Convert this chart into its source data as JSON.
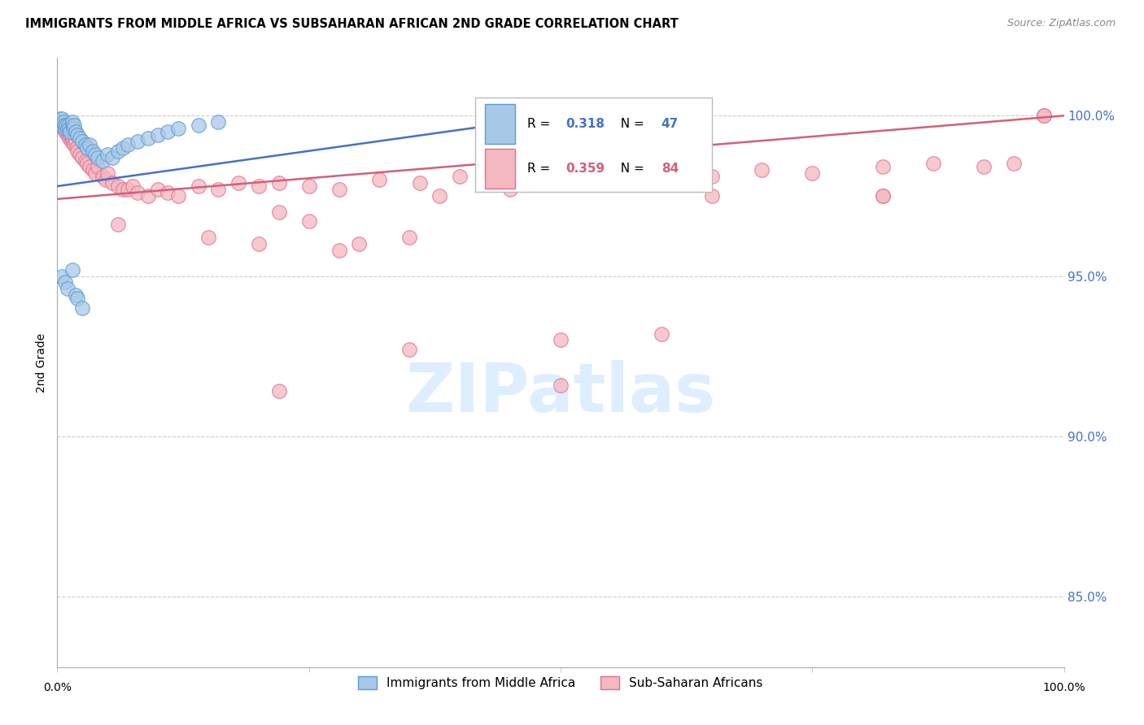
{
  "title": "IMMIGRANTS FROM MIDDLE AFRICA VS SUBSAHARAN AFRICAN 2ND GRADE CORRELATION CHART",
  "source": "Source: ZipAtlas.com",
  "ylabel": "2nd Grade",
  "yticks": [
    0.85,
    0.9,
    0.95,
    1.0
  ],
  "ytick_labels": [
    "85.0%",
    "90.0%",
    "95.0%",
    "100.0%"
  ],
  "xrange": [
    0.0,
    1.0
  ],
  "yrange": [
    0.828,
    1.018
  ],
  "legend1_label": "Immigrants from Middle Africa",
  "legend2_label": "Sub-Saharan Africans",
  "blue_R": "0.318",
  "blue_N": "47",
  "pink_R": "0.359",
  "pink_N": "84",
  "blue_color": "#a8c8e8",
  "pink_color": "#f4b8c0",
  "blue_edge_color": "#5b9bd5",
  "pink_edge_color": "#e07090",
  "blue_line_color": "#4472C4",
  "pink_line_color": "#d45f7a",
  "watermark_color": "#ddeeff",
  "blue_points_x": [
    0.002,
    0.003,
    0.004,
    0.005,
    0.005,
    0.006,
    0.007,
    0.008,
    0.009,
    0.01,
    0.011,
    0.012,
    0.013,
    0.015,
    0.015,
    0.016,
    0.017,
    0.018,
    0.02,
    0.022,
    0.025,
    0.028,
    0.03,
    0.032,
    0.035,
    0.038,
    0.04,
    0.045,
    0.05,
    0.055,
    0.06,
    0.065,
    0.07,
    0.08,
    0.09,
    0.1,
    0.11,
    0.12,
    0.14,
    0.16,
    0.005,
    0.008,
    0.01,
    0.015,
    0.018,
    0.02,
    0.025
  ],
  "blue_points_y": [
    0.998,
    0.999,
    0.998,
    0.999,
    0.997,
    0.998,
    0.997,
    0.996,
    0.997,
    0.996,
    0.997,
    0.996,
    0.995,
    0.997,
    0.998,
    0.996,
    0.997,
    0.995,
    0.994,
    0.993,
    0.992,
    0.991,
    0.99,
    0.991,
    0.989,
    0.988,
    0.987,
    0.986,
    0.988,
    0.987,
    0.989,
    0.99,
    0.991,
    0.992,
    0.993,
    0.994,
    0.995,
    0.996,
    0.997,
    0.998,
    0.95,
    0.948,
    0.946,
    0.952,
    0.944,
    0.943,
    0.94
  ],
  "pink_points_x": [
    0.002,
    0.003,
    0.004,
    0.005,
    0.006,
    0.007,
    0.008,
    0.009,
    0.01,
    0.011,
    0.012,
    0.013,
    0.014,
    0.015,
    0.016,
    0.017,
    0.018,
    0.019,
    0.02,
    0.022,
    0.025,
    0.028,
    0.03,
    0.032,
    0.035,
    0.038,
    0.04,
    0.045,
    0.048,
    0.05,
    0.055,
    0.06,
    0.065,
    0.07,
    0.075,
    0.08,
    0.09,
    0.1,
    0.11,
    0.12,
    0.14,
    0.16,
    0.18,
    0.2,
    0.22,
    0.25,
    0.28,
    0.32,
    0.36,
    0.4,
    0.44,
    0.48,
    0.52,
    0.56,
    0.6,
    0.65,
    0.7,
    0.75,
    0.82,
    0.87,
    0.92,
    0.95,
    0.98,
    0.15,
    0.2,
    0.28,
    0.35,
    0.38,
    0.22,
    0.3,
    0.65,
    0.5,
    0.06,
    0.25,
    0.82,
    0.45,
    0.35,
    0.22,
    0.5,
    0.6,
    0.82,
    0.98
  ],
  "pink_points_y": [
    0.997,
    0.998,
    0.997,
    0.998,
    0.996,
    0.997,
    0.995,
    0.996,
    0.994,
    0.995,
    0.993,
    0.994,
    0.992,
    0.993,
    0.992,
    0.991,
    0.992,
    0.99,
    0.989,
    0.988,
    0.987,
    0.986,
    0.985,
    0.984,
    0.983,
    0.982,
    0.984,
    0.981,
    0.98,
    0.982,
    0.979,
    0.978,
    0.977,
    0.977,
    0.978,
    0.976,
    0.975,
    0.977,
    0.976,
    0.975,
    0.978,
    0.977,
    0.979,
    0.978,
    0.979,
    0.978,
    0.977,
    0.98,
    0.979,
    0.981,
    0.98,
    0.979,
    0.981,
    0.98,
    0.982,
    0.981,
    0.983,
    0.982,
    0.984,
    0.985,
    0.984,
    0.985,
    1.0,
    0.962,
    0.96,
    0.958,
    0.962,
    0.975,
    0.97,
    0.96,
    0.975,
    0.93,
    0.966,
    0.967,
    0.975,
    0.977,
    0.927,
    0.914,
    0.916,
    0.932,
    0.975,
    1.0
  ],
  "blue_line_x0": 0.0,
  "blue_line_x1": 0.5,
  "blue_line_y0": 0.978,
  "blue_line_y1": 1.0,
  "pink_line_x0": 0.0,
  "pink_line_x1": 1.0,
  "pink_line_y0": 0.974,
  "pink_line_y1": 1.0
}
